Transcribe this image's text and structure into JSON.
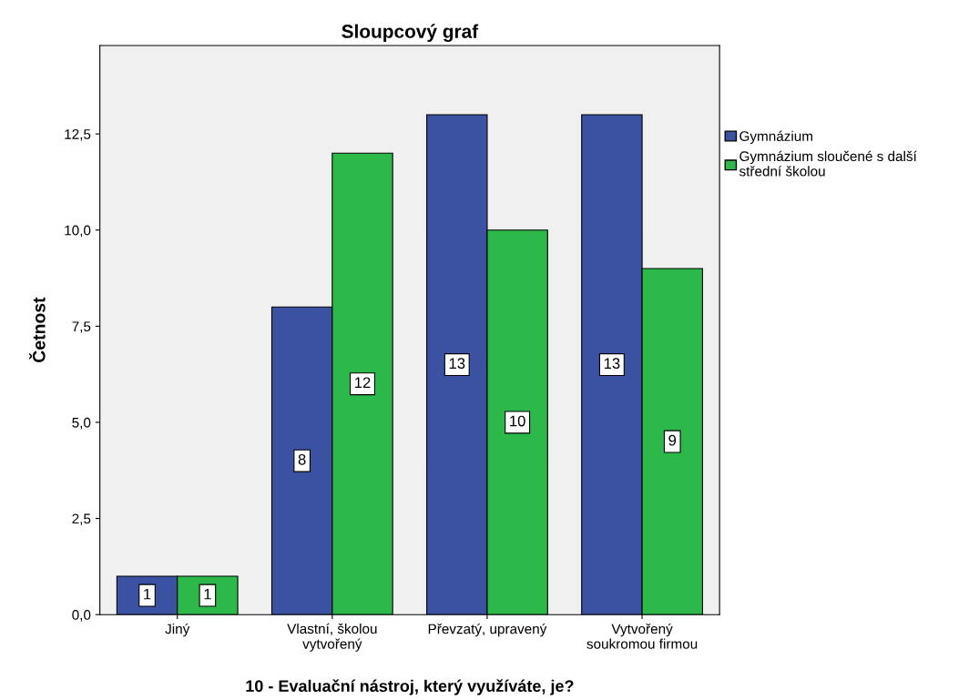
{
  "chart_data": {
    "type": "bar",
    "title": "Sloupcový graf",
    "xlabel": "10 - Evaluační nástroj, který využíváte, je?",
    "ylabel": "Četnost",
    "categories": [
      "Jiný",
      "Vlastní, školou\nvytvořený",
      "Převzatý, upravený",
      "Vytvořený\nsoukromou firmou"
    ],
    "series": [
      {
        "name": "Gymnázium",
        "color": "#3b52a3",
        "values": [
          1,
          8,
          13,
          13
        ]
      },
      {
        "name": "Gymnázium sloučené s další\nstřední školou",
        "color": "#2db84a",
        "values": [
          1,
          12,
          10,
          9
        ]
      }
    ],
    "ylim": [
      0,
      14.8
    ],
    "yticks": [
      {
        "value": 0,
        "label": "0,0"
      },
      {
        "value": 2.5,
        "label": "2,5"
      },
      {
        "value": 5,
        "label": "5,0"
      },
      {
        "value": 7.5,
        "label": "7,5"
      },
      {
        "value": 10,
        "label": "10,0"
      },
      {
        "value": 12.5,
        "label": "12,5"
      }
    ],
    "data_labels": true,
    "legend": "right",
    "grid": false
  }
}
